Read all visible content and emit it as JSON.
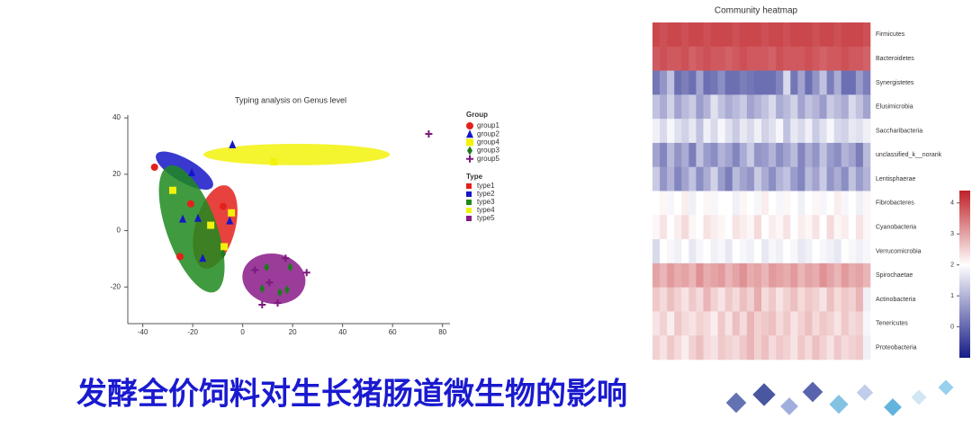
{
  "chart_data": [
    {
      "type": "scatter",
      "title": "Typing analysis on Genus level",
      "xlim": [
        -46,
        83
      ],
      "ylim": [
        -33,
        41
      ],
      "xticks": [
        -40,
        -20,
        0,
        20,
        40,
        60,
        80
      ],
      "yticks": [
        -20,
        0,
        20,
        40
      ],
      "legend_title": "Group",
      "series": [
        {
          "name": "group1",
          "color": "#e3211c",
          "marker": "circle",
          "x": [
            -35.3,
            -20.8,
            -7.8,
            -25.1
          ],
          "values": [
            22.5,
            9.5,
            8.6,
            -9.2
          ]
        },
        {
          "name": "group2",
          "color": "#1616c8",
          "marker": "triangle",
          "x": [
            -20.4,
            -24,
            -17.9,
            -5.2,
            -4.1,
            -16
          ],
          "values": [
            20.6,
            4.1,
            4.4,
            3.5,
            30.5,
            -9.8
          ]
        },
        {
          "name": "group4",
          "color": "#f2f20a",
          "marker": "square",
          "x": [
            -28,
            -4.5,
            -12.8,
            12.5,
            -7.4
          ],
          "values": [
            14.3,
            6.3,
            1.9,
            24.4,
            -5.7
          ]
        },
        {
          "name": "group3",
          "color": "#1e7a1e",
          "marker": "diamond",
          "x": [
            -7.8,
            9.6,
            19,
            7.8,
            14.9,
            17.8
          ],
          "values": [
            -8.3,
            -13,
            -13,
            -20.6,
            -21.9,
            -21
          ]
        },
        {
          "name": "group5",
          "color": "#7a1a7a",
          "marker": "plus",
          "x": [
            74.5,
            4.9,
            17.2,
            25.6,
            7.8,
            14,
            10.7
          ],
          "values": [
            34.3,
            -14,
            -9.8,
            -14.9,
            -26.3,
            -25.7,
            -18.4
          ]
        }
      ],
      "types_title": "Type",
      "types": [
        {
          "name": "type1",
          "color": "#e3211c",
          "ellipse": {
            "center": [
              -11,
              1.3
            ],
            "radii": [
              8,
              15.2
            ],
            "angle": 15
          }
        },
        {
          "name": "type2",
          "color": "#1616c8",
          "ellipse": {
            "center": [
              -23.3,
              21.3
            ],
            "radii": [
              13,
              4.1
            ],
            "angle": 30
          }
        },
        {
          "name": "type3",
          "color": "#1e8a1e",
          "ellipse": {
            "center": [
              -20.4,
              0.6
            ],
            "radii": [
              10,
              23.8
            ],
            "angle": -20
          }
        },
        {
          "name": "type4",
          "color": "#f2f20a",
          "ellipse": {
            "center": [
              21.6,
              27
            ],
            "radii": [
              37.3,
              3.8
            ],
            "angle": 0
          }
        },
        {
          "name": "type5",
          "color": "#8a1a8a",
          "ellipse": {
            "center": [
              12.5,
              -17.1
            ],
            "radii": [
              12.7,
              8.9
            ],
            "angle": 10
          }
        }
      ]
    },
    {
      "type": "heatmap",
      "title": "Community heatmap",
      "rows": [
        "Firmicutes",
        "Bacteroidetes",
        "Synergistetes",
        "Elusimicrobia",
        "Saccharibacteria",
        "unclassified_k__norank",
        "Lentisphaerae",
        "Fibrobacteres",
        "Cyanobacteria",
        "Verrucomicrobia",
        "Spirochaetae",
        "Actinobacteria",
        "Tenericutes",
        "Proteobacteria"
      ],
      "values": [
        [
          4,
          3.9,
          4,
          4,
          3.9,
          4,
          4,
          3.9,
          4,
          4,
          4,
          3.9,
          4,
          4,
          4,
          3.9,
          4,
          4,
          3.9,
          4,
          4,
          4,
          3.9,
          4,
          4,
          3.9,
          4,
          4,
          4,
          3.9
        ],
        [
          3.8,
          3.9,
          3.8,
          3.8,
          3.9,
          3.7,
          3.8,
          3.9,
          3.8,
          3.8,
          3.7,
          3.8,
          3.9,
          3.8,
          3.8,
          3.8,
          3.7,
          3.9,
          3.8,
          3.8,
          3.8,
          3.9,
          3.8,
          3.7,
          3.8,
          3.8,
          3.9,
          3.8,
          3.8,
          3.7
        ],
        [
          0.2,
          0.6,
          1.2,
          0.1,
          0.3,
          0.1,
          0.8,
          0.1,
          0.2,
          0.5,
          0.1,
          0.1,
          0.3,
          0.2,
          0.1,
          0.1,
          0.1,
          0.4,
          1.5,
          0.2,
          0.8,
          0.1,
          0.6,
          1.2,
          0.3,
          0.9,
          0.1,
          0.1,
          0.7,
          0.3
        ],
        [
          1.2,
          0.9,
          1.4,
          0.8,
          1.1,
          1.3,
          0.7,
          1.0,
          1.6,
          1.2,
          0.9,
          1.1,
          1.3,
          0.8,
          1.0,
          1.2,
          1.5,
          0.9,
          1.1,
          1.4,
          0.8,
          1.2,
          1.0,
          0.7,
          1.3,
          1.1,
          0.9,
          1.5,
          1.2,
          0.8
        ],
        [
          1.8,
          1.5,
          1.9,
          1.6,
          1.4,
          1.7,
          1.2,
          1.8,
          1.5,
          1.9,
          1.6,
          1.3,
          1.7,
          1.5,
          1.8,
          1.4,
          1.6,
          1.9,
          1.2,
          1.7,
          1.5,
          1.8,
          1.3,
          1.6,
          1.9,
          1.5,
          1.4,
          1.7,
          1.6,
          1.8
        ],
        [
          0.8,
          0.4,
          1.1,
          0.6,
          0.9,
          0.3,
          1.2,
          0.7,
          0.5,
          1.0,
          0.8,
          0.4,
          0.9,
          1.3,
          0.6,
          0.7,
          1.0,
          0.5,
          0.8,
          1.1,
          0.4,
          0.9,
          0.6,
          1.2,
          0.7,
          0.5,
          1.0,
          0.8,
          0.3,
          1.1
        ],
        [
          1.3,
          0.6,
          1.0,
          0.4,
          0.8,
          1.2,
          0.5,
          0.9,
          1.4,
          0.7,
          0.3,
          1.1,
          0.8,
          0.6,
          1.3,
          0.9,
          0.5,
          1.0,
          1.2,
          0.7,
          0.4,
          1.1,
          0.8,
          1.3,
          0.6,
          0.9,
          0.5,
          1.2,
          0.7,
          1.0
        ],
        [
          2.0,
          2.1,
          1.9,
          2.0,
          2.2,
          1.8,
          2.0,
          2.1,
          1.9,
          2.0,
          2.0,
          1.8,
          2.1,
          2.0,
          1.9,
          2.2,
          2.0,
          1.9,
          2.1,
          2.0,
          1.8,
          2.0,
          2.1,
          1.9,
          2.0,
          2.2,
          1.9,
          2.0,
          1.8,
          2.1
        ],
        [
          2.1,
          2.3,
          2.0,
          2.2,
          2.4,
          2.1,
          2.0,
          2.3,
          2.2,
          2.1,
          2.0,
          2.3,
          2.2,
          2.1,
          2.4,
          2.0,
          2.2,
          2.1,
          2.3,
          2.0,
          2.2,
          2.1,
          2.3,
          2.0,
          2.4,
          2.1,
          2.2,
          2.0,
          2.3,
          2.1
        ],
        [
          1.5,
          2.0,
          1.9,
          1.8,
          2.0,
          1.7,
          1.9,
          2.0,
          1.8,
          1.9,
          1.7,
          2.0,
          1.9,
          1.8,
          2.0,
          1.7,
          1.9,
          1.8,
          2.0,
          1.9,
          1.7,
          1.8,
          2.0,
          1.9,
          1.8,
          1.7,
          2.0,
          1.9,
          1.8,
          1.9
        ],
        [
          3.0,
          2.8,
          3.1,
          2.9,
          3.0,
          2.8,
          3.2,
          2.9,
          3.0,
          3.1,
          2.8,
          3.0,
          3.2,
          2.9,
          3.0,
          2.8,
          3.1,
          3.0,
          2.9,
          3.1,
          2.8,
          3.0,
          2.9,
          3.2,
          3.0,
          2.8,
          3.1,
          2.9,
          3.0,
          2.8
        ],
        [
          2.6,
          2.4,
          2.7,
          2.5,
          2.3,
          2.6,
          2.4,
          2.8,
          2.5,
          2.3,
          2.6,
          2.4,
          2.7,
          2.5,
          2.9,
          2.4,
          2.6,
          2.3,
          2.5,
          2.7,
          2.4,
          2.6,
          2.5,
          2.3,
          2.7,
          2.4,
          2.6,
          2.5,
          2.8,
          1.8
        ],
        [
          2.3,
          2.5,
          2.2,
          2.6,
          2.4,
          2.3,
          2.5,
          2.4,
          2.2,
          2.6,
          2.3,
          2.7,
          2.4,
          2.8,
          2.5,
          2.6,
          2.7,
          2.4,
          2.6,
          2.3,
          2.5,
          2.7,
          2.4,
          2.6,
          2.5,
          2.3,
          2.6,
          2.4,
          2.5,
          1.9
        ],
        [
          2.5,
          2.3,
          2.6,
          2.4,
          2.2,
          2.5,
          2.7,
          2.4,
          2.3,
          2.6,
          2.5,
          2.4,
          2.6,
          2.8,
          2.5,
          2.7,
          2.4,
          2.6,
          2.5,
          2.3,
          2.6,
          2.4,
          2.7,
          2.5,
          2.3,
          2.6,
          2.4,
          2.5,
          2.6,
          1.8
        ]
      ],
      "colorlim": [
        -1,
        4.4
      ],
      "colorcenter": 2,
      "colorticks": [
        0,
        1,
        2,
        3,
        4
      ],
      "colors": [
        "#171c86",
        "#ffffff",
        "#bf2228"
      ]
    }
  ],
  "caption": "发酵全价饲料对生长猪肠道微生物的影响"
}
